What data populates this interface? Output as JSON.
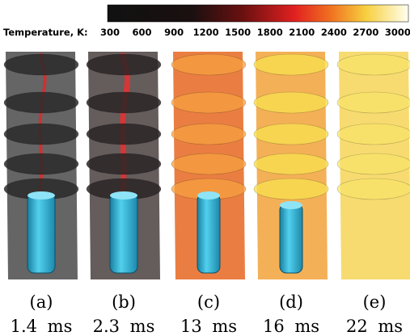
{
  "colorbar": {
    "label": "Temperature, K:",
    "ticks": [
      "300",
      "600",
      "900",
      "1200",
      "1500",
      "1800",
      "2100",
      "2400",
      "2700",
      "3000"
    ]
  },
  "panels": [
    {
      "label": "(a)",
      "time": "1.4 ms"
    },
    {
      "label": "(b)",
      "time": "2.3 ms"
    },
    {
      "label": "(c)",
      "time": "13 ms"
    },
    {
      "label": "(d)",
      "time": "16 ms"
    },
    {
      "label": "(e)",
      "time": "22 ms"
    }
  ]
}
